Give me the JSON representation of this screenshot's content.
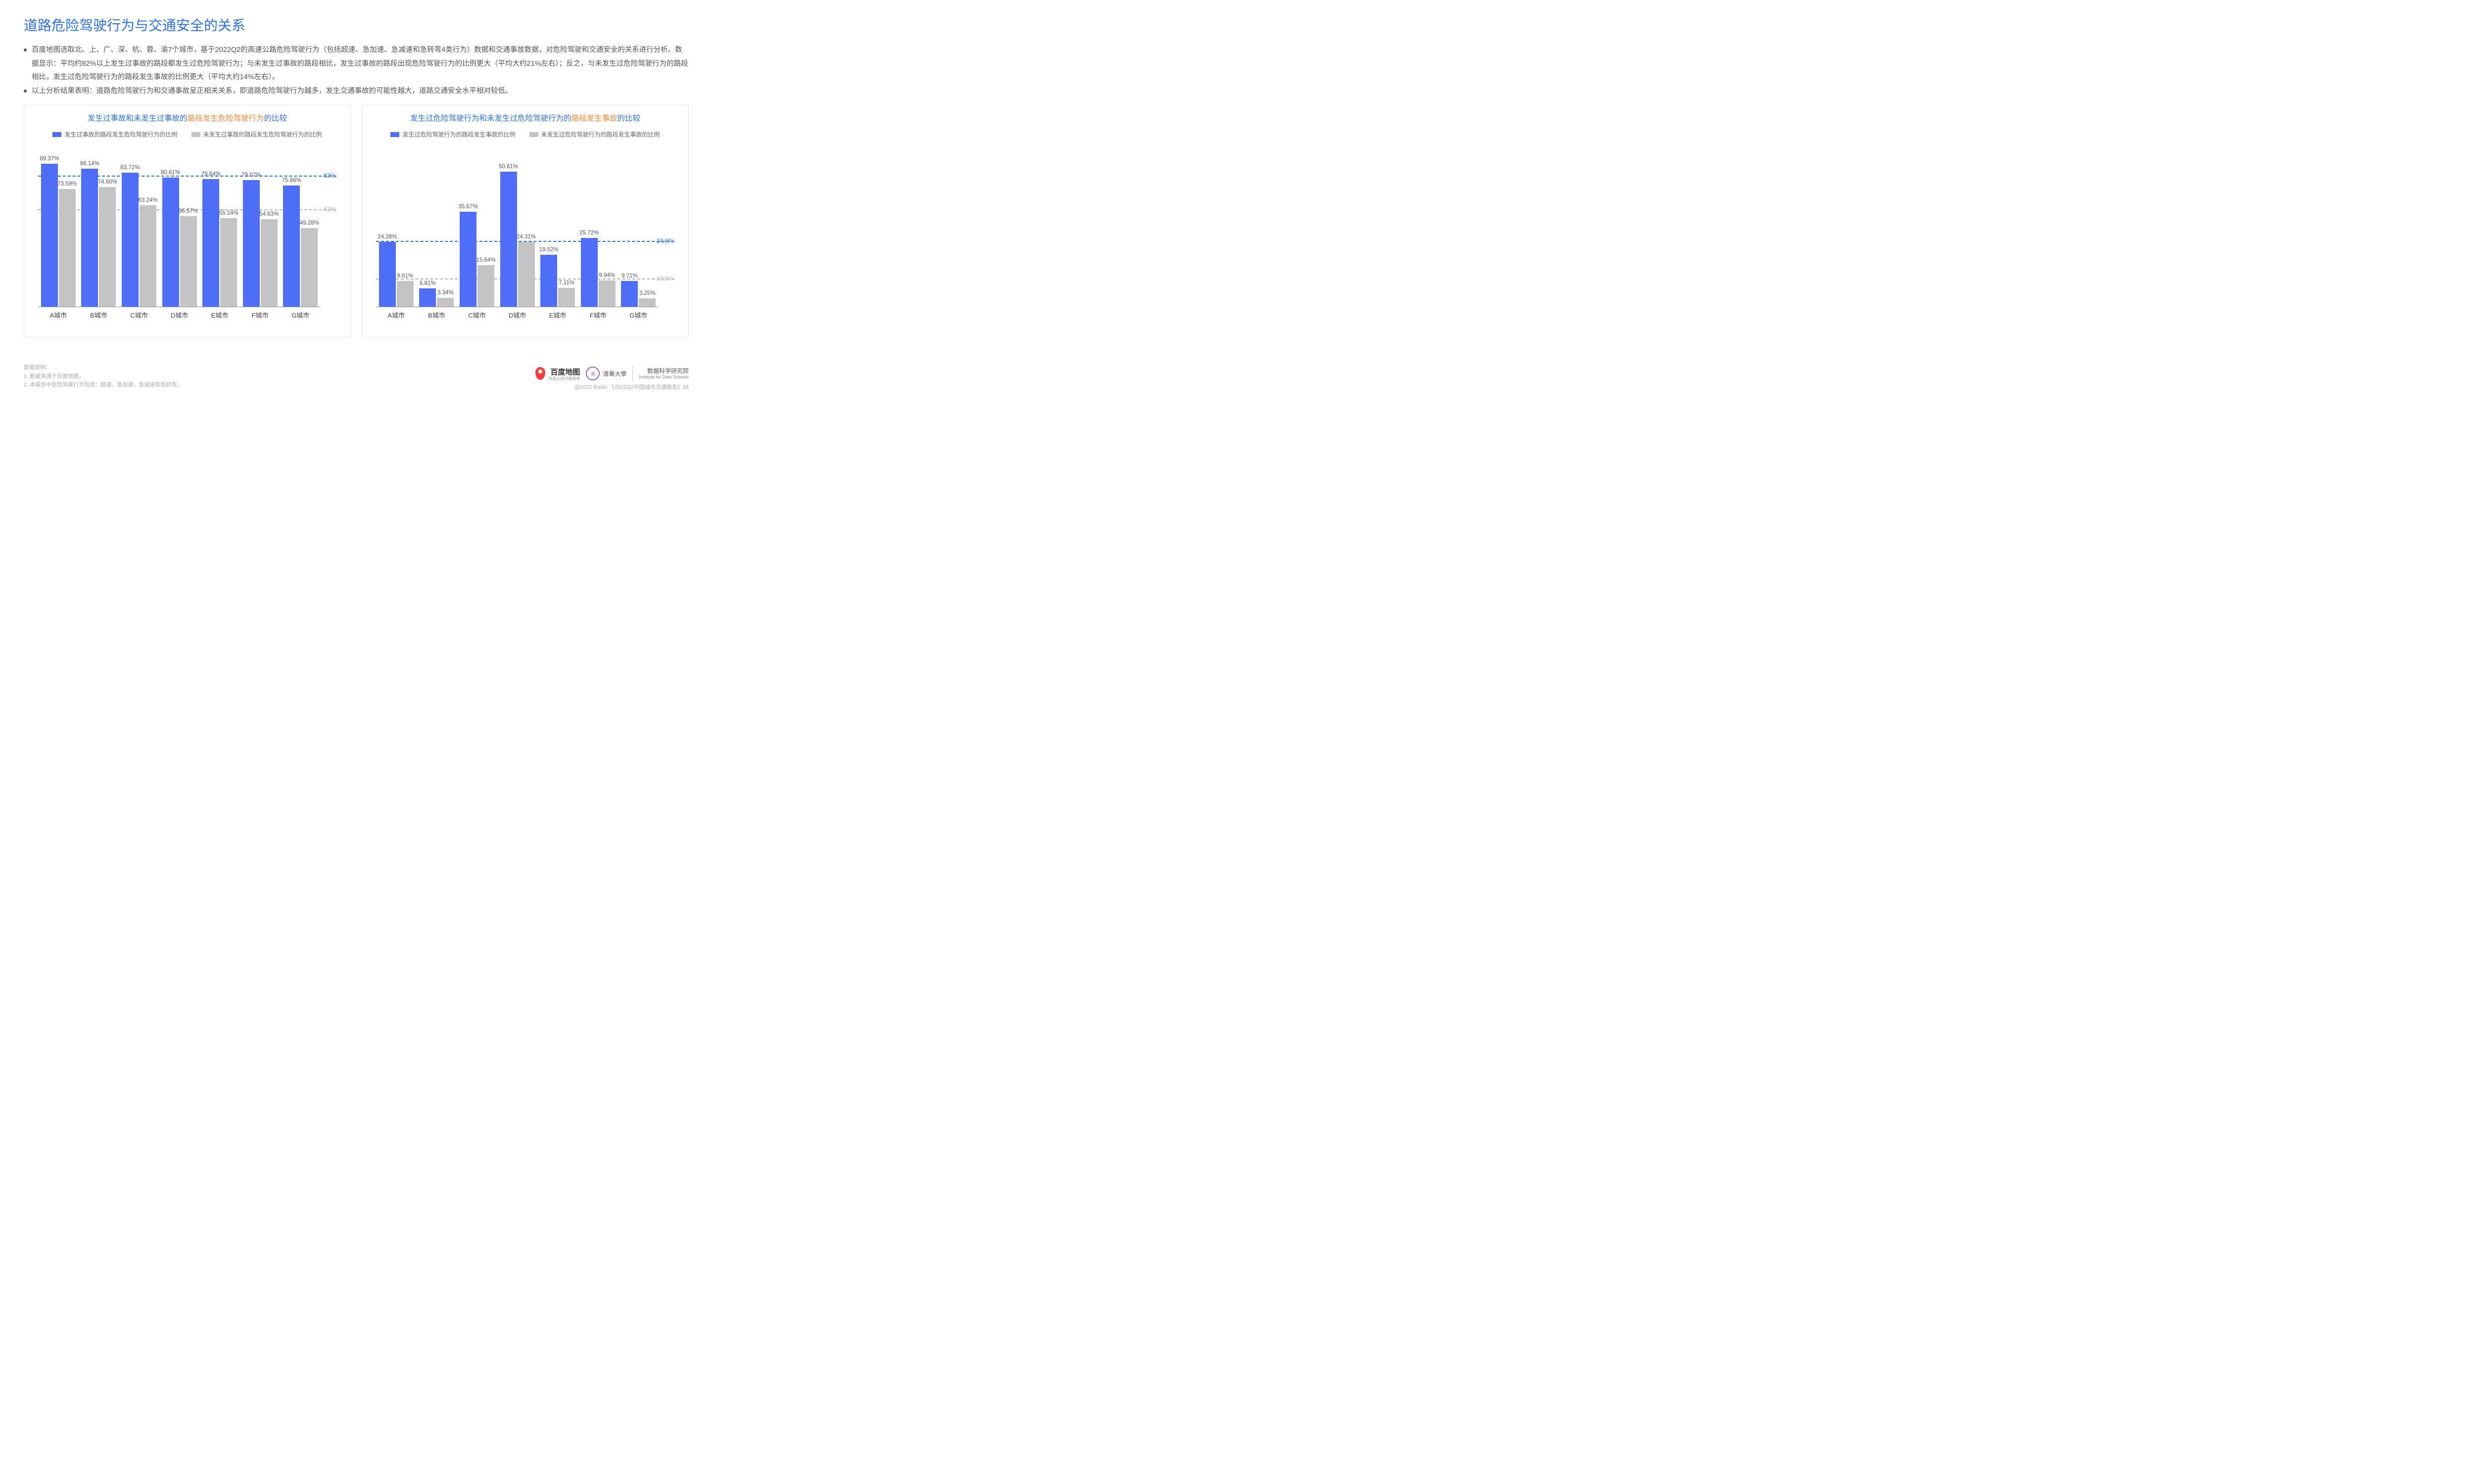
{
  "title": "道路危险驾驶行为与交通安全的关系",
  "bullets": [
    "百度地图选取北、上、广、深、杭、蓉、渝7个城市，基于2022Q2的高速公路危险驾驶行为（包括超速、急加速、急减速和急转弯4类行为）数据和交通事故数据，对危险驾驶和交通安全的关系进行分析。数据显示：平均约82%以上发生过事故的路段都发生过危险驾驶行为；与未发生过事故的路段相比，发生过事故的路段出现危险驾驶行为的比例更大（平均大约21%左右）；反之，与未发生过危险驾驶行为的路段相比，发生过危险驾驶行为的路段发生事故的比例更大（平均大约14%左右）。",
    "以上分析结果表明：道路危险驾驶行为和交通事故呈正相关关系，即道路危险驾驶行为越多，发生交通事故的可能性越大，道路交通安全水平相对较低。"
  ],
  "colors": {
    "primary": "#4f6ef7",
    "secondary": "#c4c4c4",
    "ref_blue": "#2d71e7",
    "ref_gray": "#b5b5b5",
    "title_blue": "#2d71e7",
    "orange": "#ff8a3d"
  },
  "chart1": {
    "title_pre": "发生过事故和未发生过事故的",
    "title_hl": "路段发生危险驾驶行为",
    "title_post": "的比较",
    "legend1": "发生过事故的路段发生危险驾驶行为的比例",
    "legend2": "未发生过事故的路段发生危险驾驶行为的比例",
    "ymax": 100,
    "categories": [
      "A城市",
      "B城市",
      "C城市",
      "D城市",
      "E城市",
      "F城市",
      "G城市"
    ],
    "s1": [
      89.37,
      86.14,
      83.72,
      80.61,
      79.64,
      79.07,
      75.66
    ],
    "s2": [
      73.59,
      74.6,
      63.24,
      56.57,
      55.24,
      54.63,
      49.28
    ],
    "ref1": {
      "v": 82,
      "lbl": "82%"
    },
    "ref2": {
      "v": 61,
      "lbl": "61%"
    }
  },
  "chart2": {
    "title_pre": "发生过危险驾驶行为和未发生过危险驾驶行为的",
    "title_hl": "路段发生事故",
    "title_post": "的比较",
    "legend1": "发生过危险驾驶行为的路段发生事故的比例",
    "legend2": "未发生过危险驾驶行为的路段发生事故的比例",
    "ymax": 60,
    "categories": [
      "A城市",
      "B城市",
      "C城市",
      "D城市",
      "E城市",
      "F城市",
      "G城市"
    ],
    "s1": [
      24.28,
      6.81,
      35.67,
      50.61,
      19.52,
      25.72,
      9.71
    ],
    "s2": [
      9.61,
      3.34,
      15.64,
      24.31,
      7.11,
      9.94,
      3.25
    ],
    "ref1": {
      "v": 24.6,
      "lbl": "24.6%"
    },
    "ref2": {
      "v": 10.5,
      "lbl": "10.5%"
    }
  },
  "notes": {
    "head": "数据说明：",
    "n1": "1.  数据来源于百度地图。",
    "n2": "2.  本报告中危险驾驶行为包括：超速、急加速、急减速和急转弯。"
  },
  "footer": {
    "baidu": "百度地图",
    "baidu_sub": "科技让出行更简单",
    "tsinghua": "清華大學",
    "inst_cn": "数据科学研究院",
    "inst_en": "Institute for Data Science",
    "copyright": "@2022 Baidu 《2022Q2中国城市交通报告》26"
  }
}
